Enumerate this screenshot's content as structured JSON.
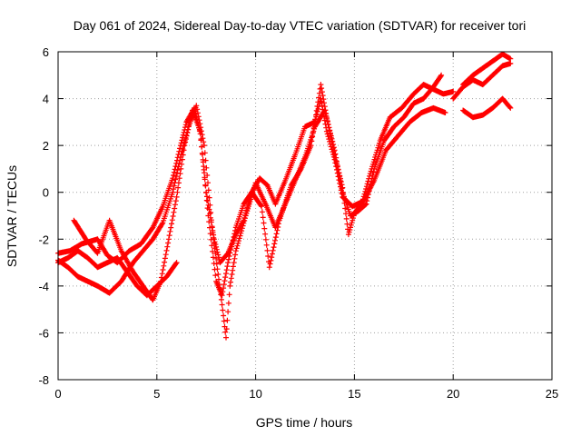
{
  "chart_data": {
    "type": "scatter",
    "title": "Day 061 of 2024, Sidereal Day-to-day VTEC variation (SDTVAR) for receiver tori",
    "xlabel": "GPS time / hours",
    "ylabel": "SDTVAR / TECUs",
    "xlim": [
      0,
      25
    ],
    "ylim": [
      -8,
      6
    ],
    "xticks": [
      0,
      5,
      10,
      15,
      20,
      25
    ],
    "yticks": [
      -8,
      -6,
      -4,
      -2,
      0,
      2,
      4,
      6
    ],
    "grid": true,
    "marker": "+",
    "color": "#ff0000",
    "series": [
      {
        "name": "trace-1",
        "points": [
          [
            0.0,
            -2.6
          ],
          [
            0.6,
            -2.5
          ],
          [
            1.2,
            -2.2
          ],
          [
            2.0,
            -2.0
          ],
          [
            2.5,
            -2.7
          ],
          [
            3.0,
            -3.0
          ],
          [
            3.6,
            -2.5
          ],
          [
            4.2,
            -2.2
          ],
          [
            4.8,
            -1.5
          ],
          [
            5.3,
            -0.6
          ],
          [
            5.8,
            0.6
          ],
          [
            6.2,
            2.0
          ],
          [
            6.5,
            3.0
          ],
          [
            6.9,
            3.6
          ],
          [
            7.2,
            2.5
          ],
          [
            7.5,
            0.0
          ],
          [
            7.9,
            -2.0
          ],
          [
            8.2,
            -3.0
          ],
          [
            8.6,
            -2.6
          ],
          [
            9.0,
            -1.8
          ],
          [
            9.4,
            -1.2
          ],
          [
            9.8,
            0.0
          ],
          [
            10.2,
            0.6
          ],
          [
            10.6,
            0.3
          ],
          [
            11.0,
            -0.5
          ],
          [
            11.5,
            0.5
          ],
          [
            12.0,
            1.6
          ],
          [
            12.5,
            2.8
          ],
          [
            13.0,
            3.0
          ],
          [
            13.3,
            4.0
          ],
          [
            13.6,
            2.6
          ],
          [
            14.0,
            1.4
          ],
          [
            14.4,
            -0.2
          ],
          [
            14.9,
            -0.6
          ],
          [
            15.4,
            -0.4
          ],
          [
            15.8,
            0.8
          ],
          [
            16.3,
            2.2
          ],
          [
            16.8,
            3.2
          ],
          [
            17.4,
            3.6
          ],
          [
            18.0,
            4.2
          ],
          [
            18.5,
            4.6
          ],
          [
            19.0,
            4.4
          ],
          [
            19.5,
            4.2
          ],
          [
            20.0,
            4.3
          ]
        ]
      },
      {
        "name": "trace-2",
        "points": [
          [
            0.0,
            -2.9
          ],
          [
            0.5,
            -3.2
          ],
          [
            1.0,
            -3.6
          ],
          [
            1.5,
            -3.8
          ],
          [
            2.0,
            -4.0
          ],
          [
            2.6,
            -4.3
          ],
          [
            3.2,
            -3.8
          ],
          [
            3.8,
            -3.0
          ],
          [
            4.3,
            -2.5
          ],
          [
            4.8,
            -2.0
          ],
          [
            5.3,
            -1.3
          ],
          [
            5.8,
            0.0
          ],
          [
            6.2,
            1.5
          ],
          [
            6.6,
            2.8
          ],
          [
            7.0,
            3.7
          ],
          [
            7.4,
            2.0
          ],
          [
            7.8,
            -1.5
          ],
          [
            8.1,
            -3.5
          ],
          [
            8.3,
            -4.8
          ],
          [
            8.5,
            -6.2
          ],
          [
            8.7,
            -4.0
          ],
          [
            9.0,
            -2.5
          ],
          [
            9.5,
            -1.0
          ],
          [
            10.0,
            0.4
          ],
          [
            10.5,
            -0.5
          ],
          [
            11.0,
            -1.5
          ],
          [
            11.5,
            -0.5
          ],
          [
            12.0,
            0.5
          ],
          [
            12.5,
            1.5
          ],
          [
            13.0,
            2.8
          ],
          [
            13.5,
            3.5
          ],
          [
            14.0,
            1.8
          ],
          [
            14.4,
            0.0
          ],
          [
            14.8,
            -1.0
          ],
          [
            15.2,
            -0.8
          ],
          [
            15.6,
            -0.5
          ],
          [
            16.0,
            1.0
          ],
          [
            16.5,
            2.2
          ],
          [
            17.0,
            2.8
          ],
          [
            17.5,
            3.2
          ],
          [
            18.0,
            3.8
          ],
          [
            18.5,
            4.0
          ],
          [
            19.0,
            4.5
          ],
          [
            19.4,
            5.0
          ]
        ]
      },
      {
        "name": "trace-3",
        "points": [
          [
            0.0,
            -3.0
          ],
          [
            0.5,
            -2.8
          ],
          [
            1.0,
            -2.5
          ],
          [
            1.5,
            -2.8
          ],
          [
            2.0,
            -3.2
          ],
          [
            2.5,
            -3.0
          ],
          [
            3.0,
            -2.8
          ],
          [
            3.5,
            -3.4
          ],
          [
            4.0,
            -4.0
          ],
          [
            4.5,
            -4.4
          ],
          [
            5.0,
            -4.0
          ],
          [
            5.5,
            -3.6
          ],
          [
            6.0,
            -3.0
          ]
        ]
      },
      {
        "name": "trace-4",
        "points": [
          [
            0.8,
            -1.2
          ],
          [
            1.4,
            -2.0
          ],
          [
            2.0,
            -2.6
          ],
          [
            2.6,
            -1.2
          ],
          [
            3.2,
            -2.5
          ],
          [
            3.8,
            -3.4
          ],
          [
            4.3,
            -4.0
          ],
          [
            4.8,
            -4.6
          ],
          [
            5.2,
            -3.8
          ],
          [
            5.6,
            -2.0
          ],
          [
            6.0,
            -0.2
          ],
          [
            6.4,
            2.0
          ],
          [
            6.8,
            3.5
          ],
          [
            7.2,
            2.6
          ],
          [
            7.6,
            -1.0
          ],
          [
            8.0,
            -3.8
          ],
          [
            8.3,
            -4.4
          ],
          [
            8.6,
            -3.0
          ],
          [
            9.0,
            -1.5
          ],
          [
            9.4,
            -0.5
          ],
          [
            9.8,
            0.0
          ],
          [
            10.3,
            -0.6
          ],
          [
            10.7,
            -3.2
          ],
          [
            11.2,
            -1.2
          ],
          [
            11.8,
            0.3
          ],
          [
            12.3,
            1.0
          ],
          [
            12.8,
            2.0
          ],
          [
            13.3,
            4.6
          ],
          [
            13.6,
            3.2
          ],
          [
            14.0,
            1.6
          ],
          [
            14.4,
            0.2
          ],
          [
            14.7,
            -1.8
          ],
          [
            15.0,
            -0.9
          ],
          [
            15.5,
            -0.3
          ],
          [
            16.0,
            0.5
          ],
          [
            16.6,
            1.8
          ],
          [
            17.2,
            2.4
          ],
          [
            17.8,
            3.0
          ],
          [
            18.4,
            3.4
          ],
          [
            19.0,
            3.6
          ],
          [
            19.6,
            3.4
          ]
        ]
      },
      {
        "name": "trace-5",
        "points": [
          [
            20.5,
            4.6
          ],
          [
            21.0,
            5.0
          ],
          [
            21.5,
            5.3
          ],
          [
            22.0,
            5.6
          ],
          [
            22.5,
            5.9
          ],
          [
            22.9,
            5.7
          ]
        ]
      },
      {
        "name": "trace-6",
        "points": [
          [
            20.0,
            4.0
          ],
          [
            20.5,
            4.5
          ],
          [
            21.0,
            4.8
          ],
          [
            21.5,
            4.6
          ],
          [
            22.0,
            5.0
          ],
          [
            22.5,
            5.4
          ],
          [
            22.9,
            5.5
          ]
        ]
      },
      {
        "name": "trace-7",
        "points": [
          [
            20.5,
            3.5
          ],
          [
            21.0,
            3.2
          ],
          [
            21.5,
            3.3
          ],
          [
            22.0,
            3.6
          ],
          [
            22.5,
            4.0
          ],
          [
            22.9,
            3.6
          ]
        ]
      }
    ]
  }
}
